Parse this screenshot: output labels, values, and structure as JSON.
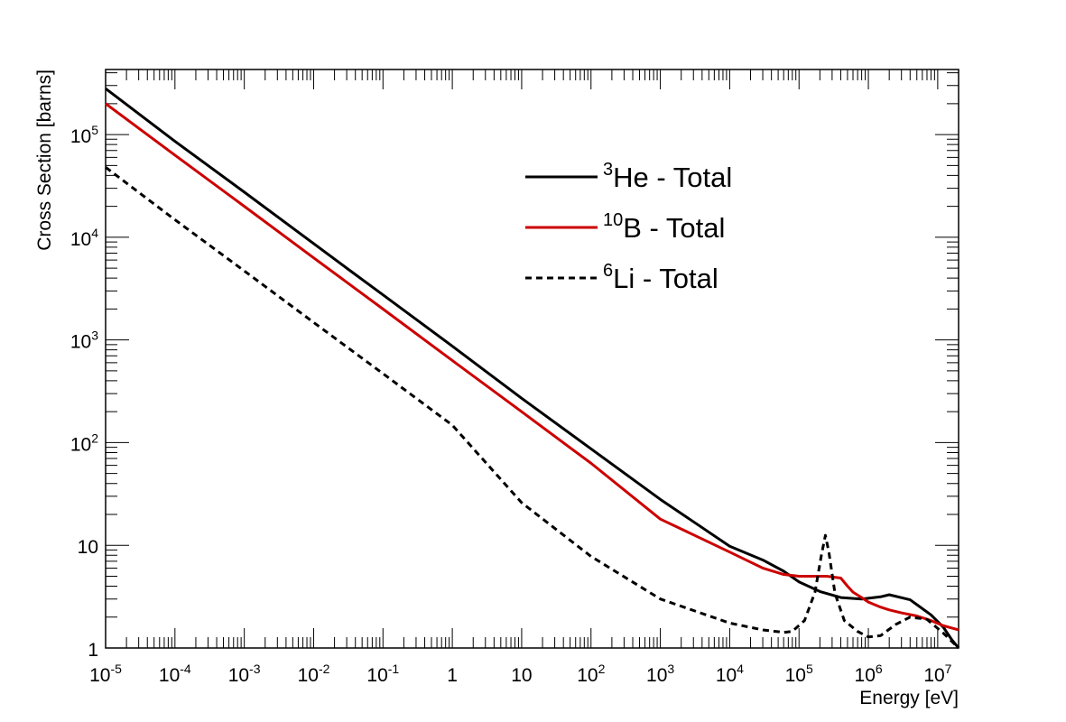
{
  "chart_data": {
    "type": "line",
    "xlabel": "Energy [eV]",
    "ylabel": "Cross Section [barns]",
    "xscale": "log",
    "yscale": "log",
    "xlim": [
      1e-05,
      20000000.0
    ],
    "ylim": [
      1,
      430000
    ],
    "legend_position": "top-center",
    "grid": false,
    "x_ticks": [
      {
        "value": 1e-05,
        "base": "10",
        "exp": "-5"
      },
      {
        "value": 0.0001,
        "base": "10",
        "exp": "-4"
      },
      {
        "value": 0.001,
        "base": "10",
        "exp": "-3"
      },
      {
        "value": 0.01,
        "base": "10",
        "exp": "-2"
      },
      {
        "value": 0.1,
        "base": "10",
        "exp": "-1"
      },
      {
        "value": 1,
        "base": "1",
        "exp": ""
      },
      {
        "value": 10,
        "base": "10",
        "exp": ""
      },
      {
        "value": 100,
        "base": "10",
        "exp": "2"
      },
      {
        "value": 1000,
        "base": "10",
        "exp": "3"
      },
      {
        "value": 10000,
        "base": "10",
        "exp": "4"
      },
      {
        "value": 100000,
        "base": "10",
        "exp": "5"
      },
      {
        "value": 1000000,
        "base": "10",
        "exp": "6"
      },
      {
        "value": 10000000,
        "base": "10",
        "exp": "7"
      }
    ],
    "y_ticks": [
      {
        "value": 1,
        "base": "1",
        "exp": ""
      },
      {
        "value": 10,
        "base": "10",
        "exp": ""
      },
      {
        "value": 100,
        "base": "10",
        "exp": "2"
      },
      {
        "value": 1000,
        "base": "10",
        "exp": "3"
      },
      {
        "value": 10000,
        "base": "10",
        "exp": "4"
      },
      {
        "value": 100000,
        "base": "10",
        "exp": "5"
      }
    ],
    "series": [
      {
        "id": "he3",
        "legend_sup": "3",
        "legend_main": "He - Total",
        "color": "#000000",
        "dash": "solid",
        "x": [
          1e-05,
          0.0001,
          0.001,
          0.03,
          0.1,
          1,
          10,
          100,
          1000,
          10000,
          30000,
          60000,
          100000,
          200000,
          400000,
          800000,
          1500000,
          2000000,
          4000000,
          8000000,
          12000000,
          16000000,
          20000000
        ],
        "y": [
          280000,
          86000,
          27500,
          5000,
          2750,
          870,
          270,
          87,
          28,
          9.8,
          7.2,
          5.6,
          4.4,
          3.55,
          3.1,
          3.0,
          3.15,
          3.3,
          2.95,
          2.1,
          1.6,
          1.2,
          1.0
        ]
      },
      {
        "id": "b10",
        "legend_sup": "10",
        "legend_main": "B - Total",
        "color": "#cc0000",
        "dash": "solid",
        "x": [
          1e-05,
          0.0001,
          0.001,
          0.01,
          0.1,
          1,
          10,
          100,
          1000,
          10000,
          30000,
          60000,
          100000,
          250000,
          400000,
          500000,
          600000,
          800000,
          1000000,
          1500000,
          2000000,
          3000000,
          5000000,
          8000000,
          12000000,
          20000000
        ],
        "y": [
          200000,
          63000,
          20000,
          6300,
          2000,
          630,
          200,
          63,
          18,
          8.6,
          6.0,
          5.2,
          5.0,
          5.0,
          4.8,
          4.0,
          3.5,
          3.1,
          2.8,
          2.5,
          2.35,
          2.2,
          2.05,
          1.85,
          1.65,
          1.5
        ]
      },
      {
        "id": "li6",
        "legend_sup": "6",
        "legend_main": "Li - Total",
        "color": "#000000",
        "dash": "dashed",
        "x": [
          1e-05,
          0.0001,
          0.001,
          0.01,
          0.1,
          1,
          10,
          100,
          1000,
          10000,
          30000,
          60000,
          80000,
          120000,
          170000,
          210000,
          240000,
          270000,
          330000,
          450000,
          700000,
          1000000,
          1500000,
          2500000,
          4000000,
          7000000,
          12000000,
          20000000
        ],
        "y": [
          48000,
          14800,
          4700,
          1480,
          470,
          148,
          26,
          7.8,
          3.0,
          1.75,
          1.5,
          1.42,
          1.45,
          1.85,
          3.5,
          8.0,
          12.5,
          8.5,
          3.4,
          1.85,
          1.45,
          1.28,
          1.32,
          1.7,
          2.0,
          1.9,
          1.4,
          1.0
        ]
      }
    ]
  }
}
